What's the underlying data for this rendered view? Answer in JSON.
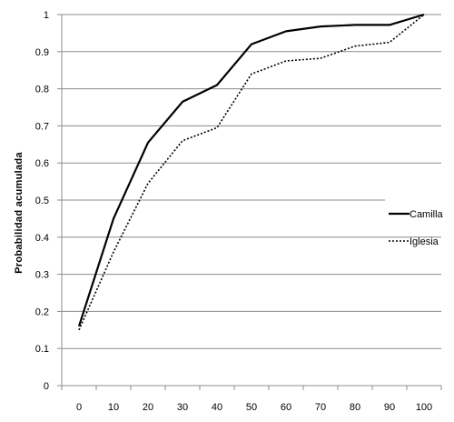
{
  "chart_data": {
    "type": "line",
    "title": "",
    "xlabel": "",
    "ylabel": "Probabilidad  acumulada",
    "x": [
      0,
      10,
      20,
      30,
      40,
      50,
      60,
      70,
      80,
      90,
      100
    ],
    "xlim": [
      -5,
      105
    ],
    "ylim": [
      0,
      1
    ],
    "yticks": [
      "0",
      "0.1",
      "0.2",
      "0.3",
      "0.4",
      "0.5",
      "0.6",
      "0.7",
      "0.8",
      "0.9",
      "1"
    ],
    "xticks": [
      "0",
      "10",
      "20",
      "30",
      "40",
      "50",
      "60",
      "70",
      "80",
      "90",
      "100"
    ],
    "grid": "horizontal",
    "legend_position": "right",
    "series": [
      {
        "name": "Camilla",
        "style": "solid",
        "color": "#000000",
        "values": [
          0.16,
          0.45,
          0.655,
          0.765,
          0.81,
          0.92,
          0.955,
          0.968,
          0.972,
          0.972,
          1.0
        ]
      },
      {
        "name": "Iglesia",
        "style": "dotted",
        "color": "#000000",
        "values": [
          0.15,
          0.36,
          0.545,
          0.66,
          0.695,
          0.84,
          0.875,
          0.882,
          0.915,
          0.925,
          1.0
        ]
      }
    ]
  }
}
